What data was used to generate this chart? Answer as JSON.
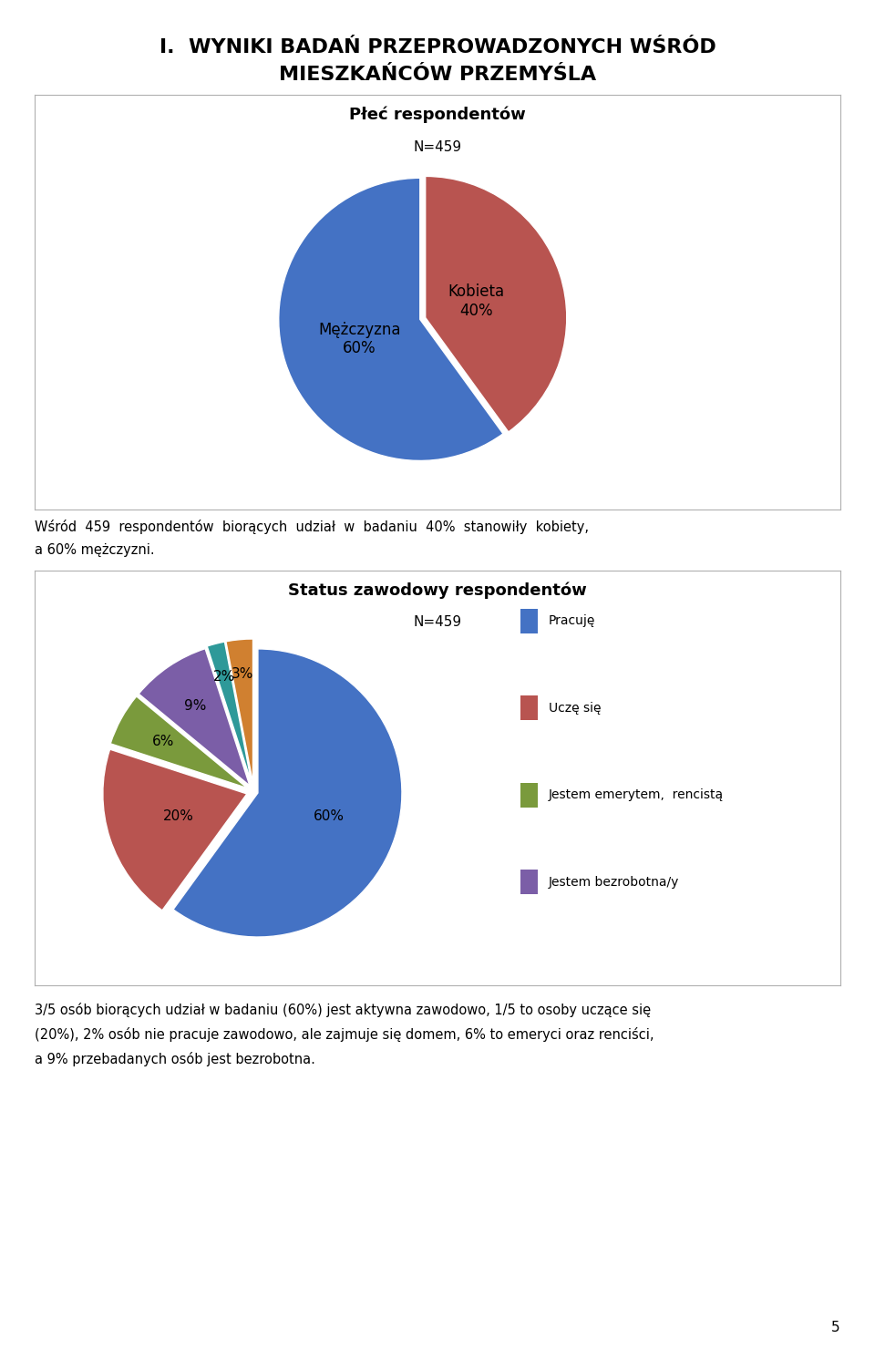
{
  "page_title_line1": "I.  WYNIKI BADAŃ PRZEPROWADZONYCH WŚRÓD",
  "page_title_line2": "MIESZKAŃCÓW PRZEMYŚLA",
  "chart1_title": "Płeć respondentów",
  "chart1_subtitle": "N=459",
  "chart1_slices": [
    40,
    60
  ],
  "chart1_labels": [
    "Kobieta\n40%",
    "Mężczyzna\n60%"
  ],
  "chart1_colors": [
    "#b85450",
    "#4472c4"
  ],
  "chart1_explode": [
    0.04,
    0.0
  ],
  "text_between_line1": "Wśród  459  respondentów  biorących  udział  w  badaniu  40%  stanowiły  kobiety,",
  "text_between_line2": "a 60% mężczyzni.",
  "chart2_title": "Status zawodowy respondentów",
  "chart2_subtitle": "N=459",
  "chart2_slices": [
    60,
    20,
    6,
    9,
    2,
    3
  ],
  "chart2_labels_pct": [
    "60%",
    "20%",
    "6%",
    "9%",
    "2%",
    "3%"
  ],
  "chart2_colors": [
    "#4472c4",
    "#b85450",
    "#7a9a3c",
    "#7b5ea7",
    "#2e9999",
    "#d08030"
  ],
  "chart2_explode": [
    0.03,
    0.05,
    0.05,
    0.05,
    0.06,
    0.06
  ],
  "chart2_legend": [
    "Pracuję",
    "Uczę się",
    "Jestem emerytem,  rencistą",
    "Jestem bezrobotna/y"
  ],
  "chart2_legend_colors": [
    "#4472c4",
    "#b85450",
    "#7a9a3c",
    "#7b5ea7"
  ],
  "footer_text_line1": "3/5 osób biorących udział w badaniu (60%) jest aktywna zawodowo, 1/5 to osoby uczące się",
  "footer_text_line2": "(20%), 2% osób nie pracuje zawodowo, ale zajmuje się domem, 6% to emeryci oraz renciści,",
  "footer_text_line3": "a 9% przebadanych osób jest bezrobotna.",
  "page_number": "5",
  "background_color": "#ffffff"
}
